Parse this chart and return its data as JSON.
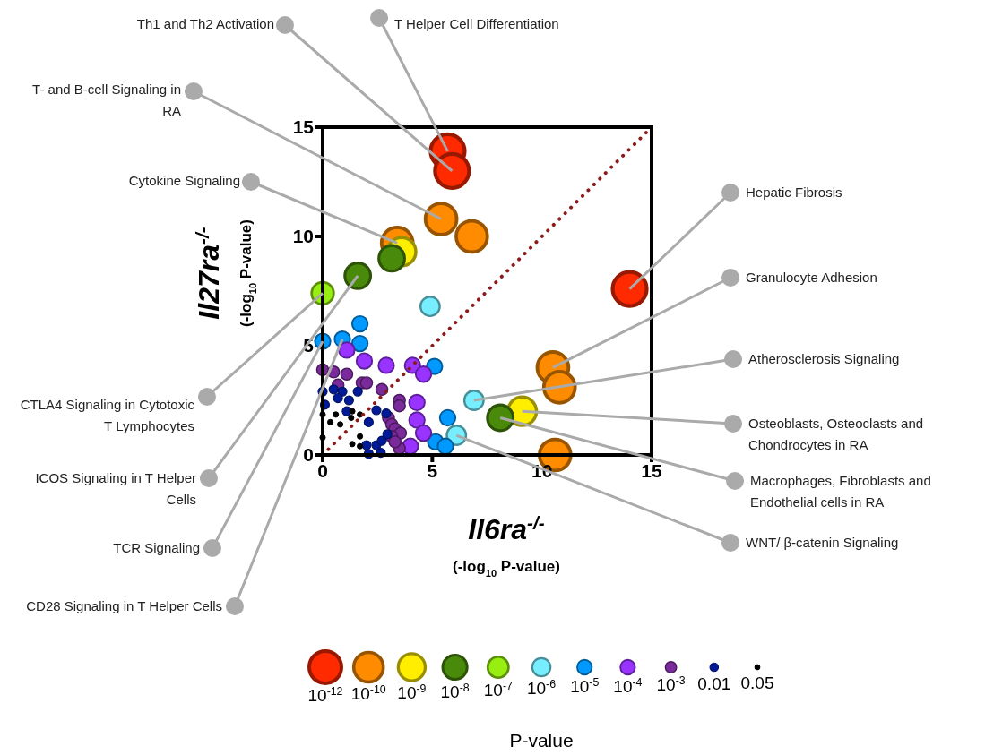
{
  "chart_data": {
    "type": "bubble",
    "xlabel": "Il6ra$^{-/-}$\n(-log$_{10}$ P-value)",
    "ylabel": "Il27ra$^{-/-}$\n(-log$_{10}$ P-value)",
    "legend_title": "P-value",
    "legend": "bottom",
    "marker": "circle",
    "xlim": [
      0,
      15
    ],
    "ylim": [
      0,
      15
    ],
    "xticks": [
      0,
      5,
      10,
      15
    ],
    "yticks": [
      0,
      5,
      10,
      15
    ],
    "series": [
      {
        "name": "10$^{-12}$",
        "color": "#ff2a00",
        "x": [
          5.7,
          5.9,
          14.0
        ],
        "values": [
          13.9,
          13.0,
          7.6
        ],
        "sizes": [
          1,
          1,
          1
        ]
      },
      {
        "name": "10$^{-10}$",
        "color": "#ff8c00",
        "x": [
          5.4,
          6.8,
          10.5,
          10.8,
          10.6,
          3.4
        ],
        "values": [
          10.8,
          10.0,
          4.0,
          3.1,
          0.0,
          9.7
        ],
        "sizes": [
          0.84,
          0.84,
          0.84,
          0.84,
          0.84,
          0.84
        ]
      },
      {
        "name": "10$^{-9}$",
        "color": "#ffee00",
        "x": [
          3.6,
          9.1
        ],
        "values": [
          9.3,
          2.0
        ],
        "sizes": [
          0.7,
          0.7
        ]
      },
      {
        "name": "10$^{-8}$",
        "color": "#4a8a0a",
        "x": [
          3.15,
          1.6,
          8.1
        ],
        "values": [
          9.0,
          8.2,
          1.7
        ],
        "sizes": [
          0.57,
          0.57,
          0.57
        ]
      },
      {
        "name": "10$^{-7}$",
        "color": "#99ee11",
        "x": [
          0
        ],
        "values": [
          7.4
        ],
        "sizes": [
          0.42
        ]
      },
      {
        "name": "10$^{-6}$",
        "color": "#77eeff",
        "x": [
          4.9,
          6.9,
          6.1
        ],
        "values": [
          6.8,
          2.5,
          0.9
        ],
        "sizes": [
          0.32,
          0.32,
          0.32
        ]
      },
      {
        "name": "10$^{-5}$",
        "color": "#0099ff",
        "x": [
          1.7,
          0,
          0.9,
          1.7,
          5.1,
          5.7,
          5.15,
          5.6
        ],
        "values": [
          6.0,
          5.2,
          5.3,
          5.1,
          4.05,
          1.7,
          0.6,
          0.4
        ],
        "sizes": [
          0.21,
          0.21,
          0.21,
          0.21,
          0.21,
          0.21,
          0.21,
          0.21
        ]
      },
      {
        "name": "10$^{-4}$",
        "color": "#9933ff",
        "x": [
          1.1,
          1.9,
          2.9,
          4.1,
          4.6,
          4.3,
          4.3,
          4.6,
          4.0
        ],
        "values": [
          4.8,
          4.3,
          4.1,
          4.1,
          3.7,
          2.4,
          1.6,
          1.0,
          0.4
        ],
        "sizes": [
          0.21,
          0.21,
          0.21,
          0.21,
          0.21,
          0.21,
          0.21,
          0.21,
          0.21
        ]
      },
      {
        "name": "10$^{-3}$",
        "color": "#7a2a9a",
        "x": [
          0,
          0.5,
          1.1,
          1.8,
          2.0,
          2.7,
          0.7,
          3.5,
          3.5,
          3.0,
          3.15,
          3.3,
          3.55,
          3.15,
          3.5,
          3.3
        ],
        "values": [
          3.9,
          3.8,
          3.7,
          3.3,
          3.3,
          3.0,
          3.2,
          2.5,
          2.25,
          1.7,
          1.4,
          1.2,
          1.0,
          0.85,
          0.3,
          0.6
        ],
        "sizes": [
          0.12,
          0.12,
          0.12,
          0.12,
          0.12,
          0.12,
          0.12,
          0.12,
          0.12,
          0.12,
          0.12,
          0.12,
          0.12,
          0.12,
          0.12,
          0.12
        ]
      },
      {
        "name": "0.01",
        "color": "#001a99",
        "x": [
          0,
          0.5,
          0.9,
          1.6,
          0.7,
          1.2,
          0.1,
          1.1,
          2.45,
          2.9,
          2.1,
          2.0,
          2.45,
          2.7,
          2.65,
          2.1,
          2.95
        ],
        "values": [
          2.9,
          3.0,
          2.9,
          2.9,
          2.6,
          2.5,
          2.3,
          2.0,
          2.05,
          1.9,
          1.5,
          0.45,
          0.45,
          0.65,
          0.1,
          0.05,
          0.95
        ],
        "sizes": [
          0.07,
          0.07,
          0.07,
          0.07,
          0.07,
          0.07,
          0.07,
          0.07,
          0.07,
          0.07,
          0.07,
          0.07,
          0.07,
          0.07,
          0.07,
          0.07,
          0.07
        ]
      },
      {
        "name": "0.05",
        "color": "#000000",
        "x": [
          0,
          0.6,
          0.35,
          0.8,
          1.35,
          1.7,
          1.3,
          1.7,
          1.35,
          1.7,
          0
        ],
        "values": [
          1.85,
          1.85,
          1.5,
          1.4,
          2.0,
          1.85,
          1.7,
          0.85,
          0.5,
          0.4,
          0.8
        ],
        "sizes": [
          0.026,
          0.026,
          0.026,
          0.026,
          0.026,
          0.026,
          0.026,
          0.026,
          0.026,
          0.026,
          0.026
        ]
      },
      {
        "type": "line",
        "color": "#8b1a1a",
        "line_style": "dotted",
        "marker": "none",
        "x": [
          0,
          15
        ],
        "values": [
          0,
          15
        ]
      }
    ],
    "annotations": [
      {
        "text": "T Helper Cell Differentiation",
        "x": 5.7,
        "y": 13.9
      },
      {
        "text": "Th1 and Th2 Activation",
        "x": 5.9,
        "y": 13.0
      },
      {
        "text": "T- and B-cell Signaling in RA",
        "x": 5.4,
        "y": 10.8
      },
      {
        "text": "Cytokine Signaling",
        "x": 3.4,
        "y": 9.7
      },
      {
        "text": "Hepatic Fibrosis",
        "x": 14.0,
        "y": 7.6
      },
      {
        "text": "Granulocyte Adhesion",
        "x": 10.5,
        "y": 4.0
      },
      {
        "text": "Atherosclerosis Signaling",
        "x": 6.9,
        "y": 2.5
      },
      {
        "text": "Osteoblasts, Osteoclasts and Chondrocytes in RA",
        "x": 9.1,
        "y": 2.0
      },
      {
        "text": "Macrophages, Fibroblasts and Endothelial cells in RA",
        "x": 8.1,
        "y": 1.7
      },
      {
        "text": "WNT/ β-catenin Signaling",
        "x": 6.1,
        "y": 0.9
      },
      {
        "text": "CTLA4 Signaling in Cytotoxic T Lymphocytes",
        "x": 0,
        "y": 7.4
      },
      {
        "text": "ICOS Signaling in T Helper Cells",
        "x": 1.6,
        "y": 8.2
      },
      {
        "text": "TCR Signaling",
        "x": 0,
        "y": 5.2
      },
      {
        "text": "CD28 Signaling in T Helper Cells",
        "x": 0.9,
        "y": 5.3
      }
    ]
  }
}
